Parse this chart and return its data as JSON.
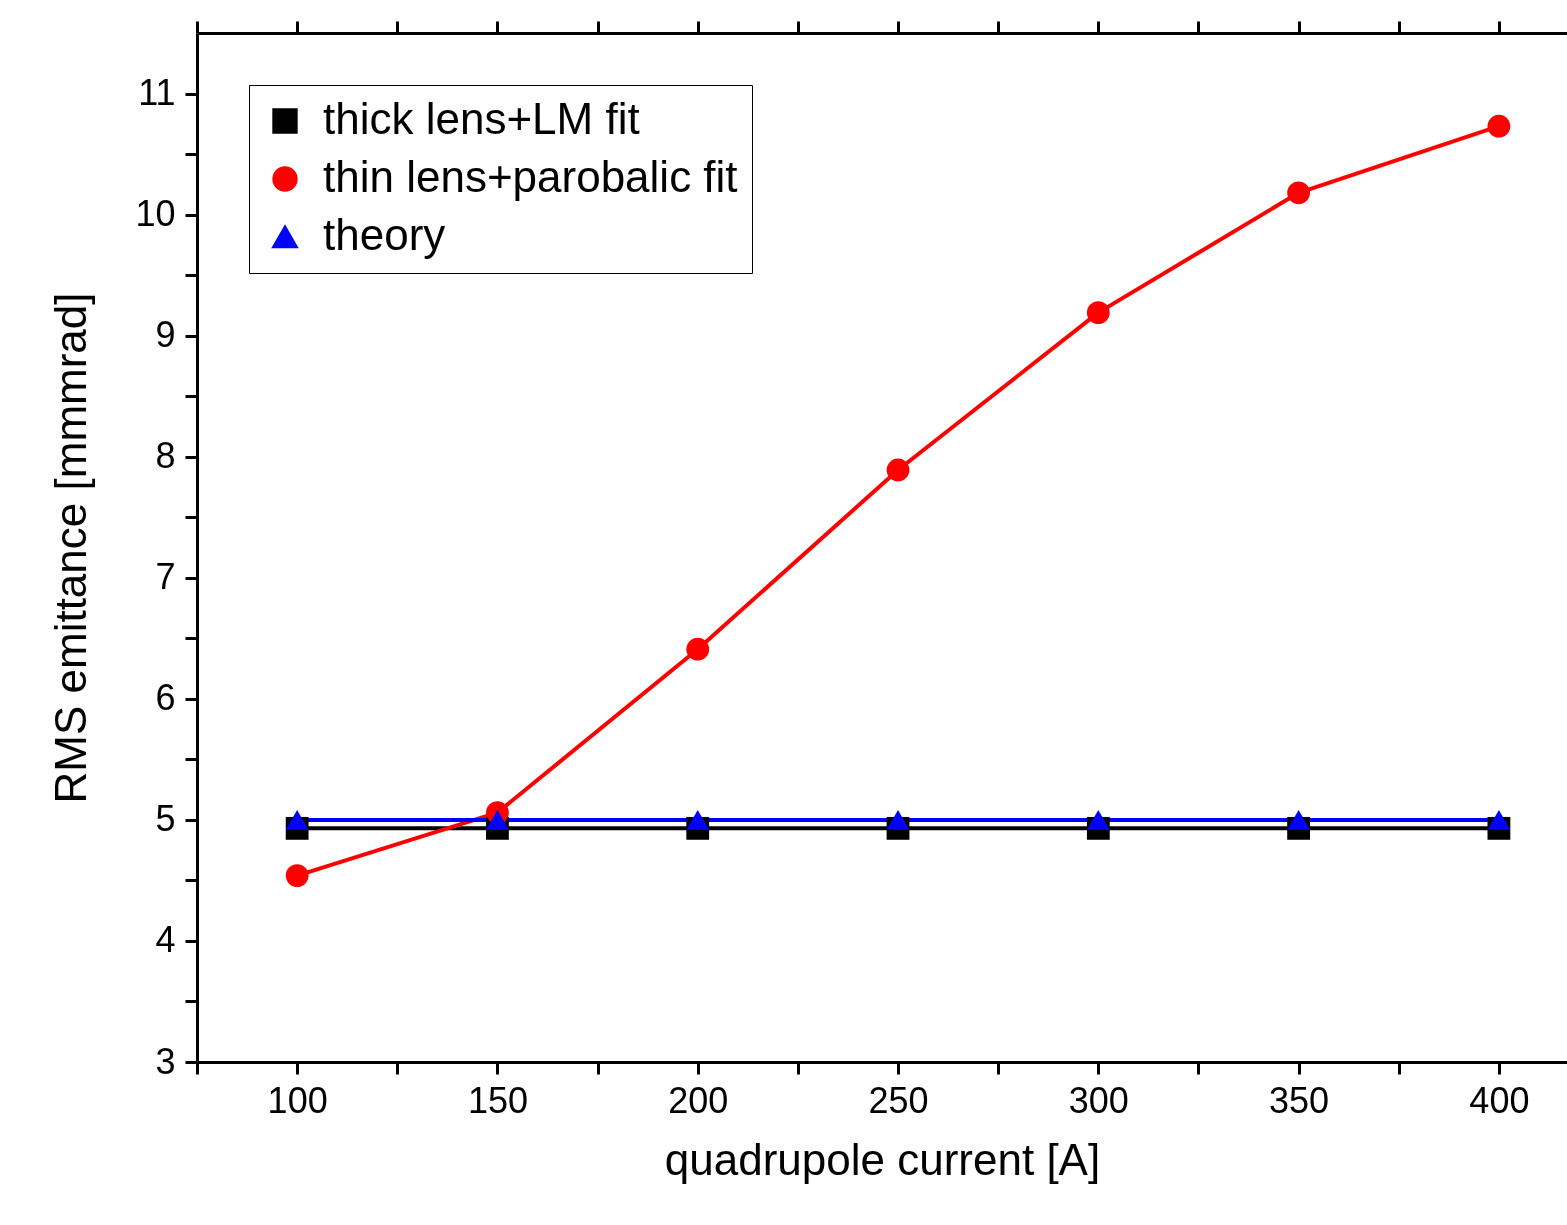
{
  "chart_data": {
    "type": "line",
    "xlabel": "quadrupole current [A]",
    "ylabel": "RMS emittance [mmmrad]",
    "x": [
      100,
      150,
      200,
      250,
      300,
      350,
      400
    ],
    "series": [
      {
        "name": "thick lens+LM fit",
        "color": "#000000",
        "marker": "square",
        "values": [
          4.93,
          4.93,
          4.93,
          4.93,
          4.93,
          4.93,
          4.93
        ]
      },
      {
        "name": "thin lens+parobalic fit",
        "color": "#ff0000",
        "marker": "circle",
        "values": [
          4.54,
          5.06,
          6.41,
          7.89,
          9.19,
          10.18,
          10.73
        ]
      },
      {
        "name": "theory",
        "color": "#0000ff",
        "marker": "triangle",
        "values": [
          5.0,
          5.0,
          5.0,
          5.0,
          5.0,
          5.0,
          5.0
        ]
      }
    ],
    "xlim": [
      75,
      417
    ],
    "xticks": [
      {
        "value": 75,
        "label": null
      },
      100,
      {
        "value": 125,
        "label": null
      },
      150,
      {
        "value": 175,
        "label": null
      },
      200,
      {
        "value": 225,
        "label": null
      },
      250,
      {
        "value": 275,
        "label": null
      },
      300,
      {
        "value": 325,
        "label": null
      },
      350,
      {
        "value": 375,
        "label": null
      },
      400
    ],
    "ylim": [
      3,
      11.5
    ],
    "yticks": [
      3,
      {
        "value": 3.5,
        "label": null
      },
      4,
      {
        "value": 4.5,
        "label": null
      },
      5,
      {
        "value": 5.5,
        "label": null
      },
      6,
      {
        "value": 6.5,
        "label": null
      },
      7,
      {
        "value": 7.5,
        "label": null
      },
      8,
      {
        "value": 8.5,
        "label": null
      },
      9,
      {
        "value": 9.5,
        "label": null
      },
      10,
      {
        "value": 10.5,
        "label": null
      },
      11
    ],
    "grid": false,
    "legend": "top left",
    "line_style": "solid"
  }
}
